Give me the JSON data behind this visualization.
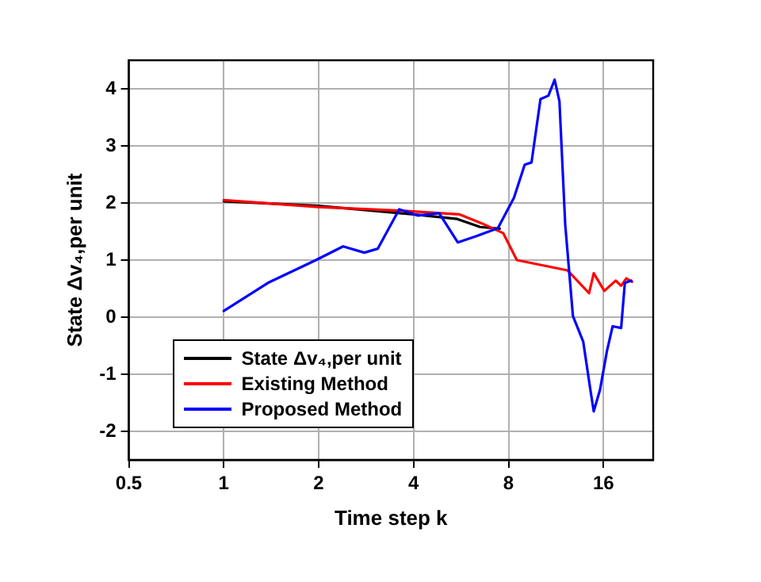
{
  "chart_data": {
    "type": "line",
    "xlabel": "Time step k",
    "ylabel": "State Δv₄,per unit",
    "log": "x",
    "grid": true,
    "legend": "bottom left",
    "marker": "none",
    "line_style": "solid",
    "xlim": [
      0.5,
      23
    ],
    "xticks": [
      0.5,
      1,
      2,
      4,
      8,
      16
    ],
    "ylim": [
      -2.5,
      4.5
    ],
    "yticks": [
      -2,
      -1,
      0,
      1,
      2,
      3,
      4
    ],
    "series": [
      {
        "name": "State Δv₄,per unit",
        "color": "#000000",
        "x": [
          1,
          2,
          4,
          5.5,
          6.5,
          7.5
        ],
        "values": [
          2.03,
          1.95,
          1.8,
          1.72,
          1.58,
          1.55
        ]
      },
      {
        "name": "Existing Method",
        "color": "#ff0000",
        "x": [
          1,
          2,
          3.8,
          5.6,
          6.6,
          7.7,
          8.5,
          12.3,
          14.4,
          14.9,
          16.1,
          17.5,
          18.2,
          18.9,
          19.7
        ],
        "values": [
          2.05,
          1.93,
          1.86,
          1.8,
          1.64,
          1.47,
          1.0,
          0.82,
          0.42,
          0.77,
          0.46,
          0.64,
          0.55,
          0.68,
          0.62
        ]
      },
      {
        "name": "Proposed Method",
        "color": "#0000ff",
        "x": [
          1,
          1.38,
          1.96,
          2.39,
          2.79,
          3.08,
          3.6,
          4.12,
          4.82,
          5.52,
          6.33,
          7.4,
          8.32,
          9.0,
          9.46,
          10.1,
          10.7,
          11.2,
          11.6,
          12.1,
          12.8,
          13.8,
          14.5,
          14.9,
          15.6,
          16.4,
          17.1,
          18.2,
          18.7,
          19.6
        ],
        "values": [
          0.11,
          0.6,
          1.0,
          1.24,
          1.13,
          1.2,
          1.89,
          1.78,
          1.82,
          1.31,
          1.42,
          1.56,
          2.09,
          2.67,
          2.71,
          3.82,
          3.88,
          4.16,
          3.78,
          1.62,
          0.02,
          -0.43,
          -1.23,
          -1.65,
          -1.27,
          -0.6,
          -0.16,
          -0.19,
          0.6,
          0.64
        ]
      }
    ]
  }
}
